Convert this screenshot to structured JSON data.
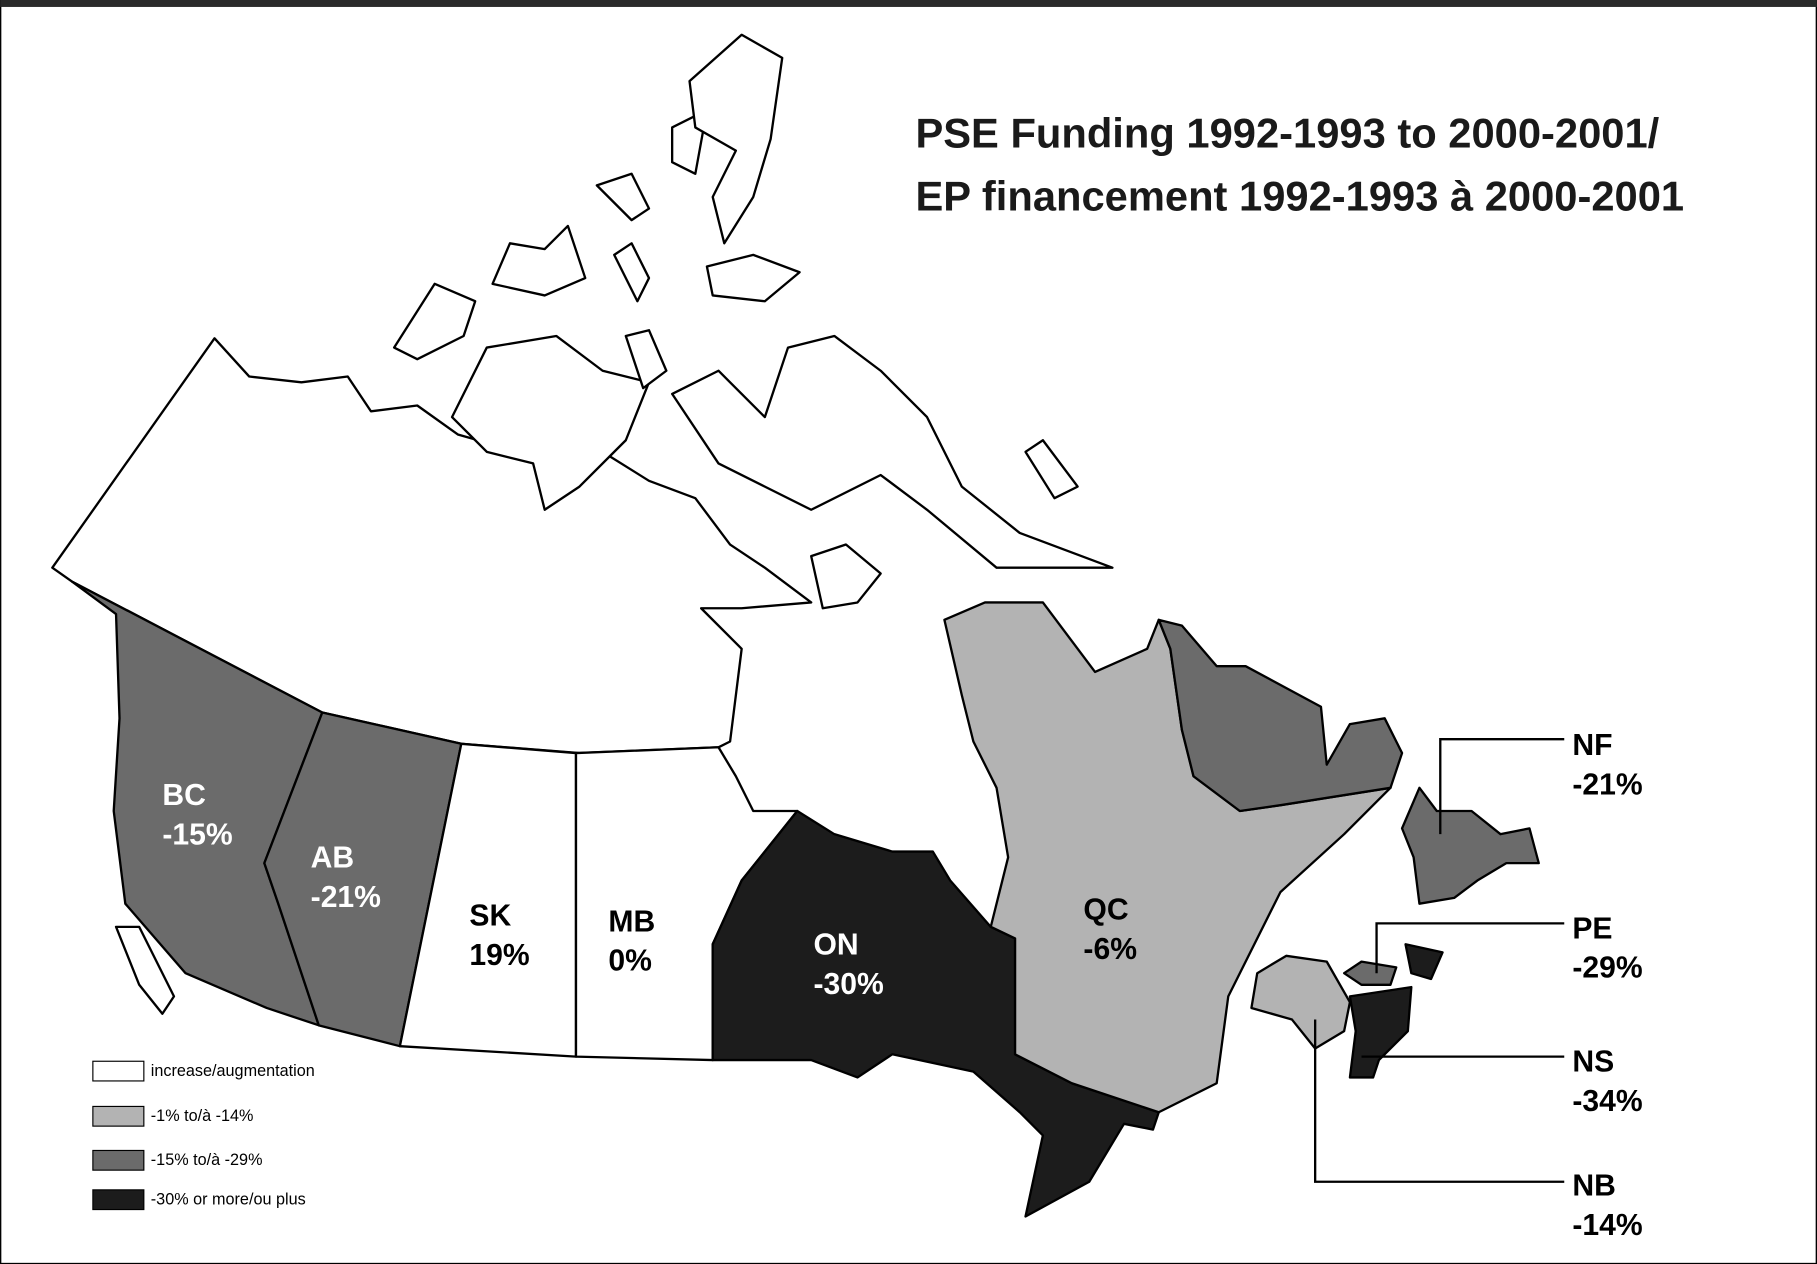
{
  "title_lines": [
    "PSE Funding 1992-1993 to 2000-2001/",
    "EP financement 1992-1993 à 2000-2001"
  ],
  "provinces": [
    {
      "code": "BC",
      "value": -15,
      "value_label": "-15%",
      "color": "#6b6b6b"
    },
    {
      "code": "AB",
      "value": -21,
      "value_label": "-21%",
      "color": "#6b6b6b"
    },
    {
      "code": "SK",
      "value": 19,
      "value_label": "19%",
      "color": "#ffffff"
    },
    {
      "code": "MB",
      "value": 0,
      "value_label": "0%",
      "color": "#ffffff"
    },
    {
      "code": "ON",
      "value": -30,
      "value_label": "-30%",
      "color": "#1c1c1c"
    },
    {
      "code": "QC",
      "value": -6,
      "value_label": "-6%",
      "color": "#b3b3b3"
    },
    {
      "code": "NF",
      "value": -21,
      "value_label": "-21%",
      "color": "#6b6b6b"
    },
    {
      "code": "PE",
      "value": -29,
      "value_label": "-29%",
      "color": "#6b6b6b"
    },
    {
      "code": "NS",
      "value": -34,
      "value_label": "-34%",
      "color": "#1c1c1c"
    },
    {
      "code": "NB",
      "value": -14,
      "value_label": "-14%",
      "color": "#b3b3b3"
    }
  ],
  "legend": [
    {
      "label": "increase/augmentation",
      "color": "#ffffff"
    },
    {
      "label": "-1% to/à -14%",
      "color": "#b3b3b3"
    },
    {
      "label": "-15% to/à -29%",
      "color": "#6b6b6b"
    },
    {
      "label": "-30% or more/ou plus",
      "color": "#1c1c1c"
    }
  ]
}
